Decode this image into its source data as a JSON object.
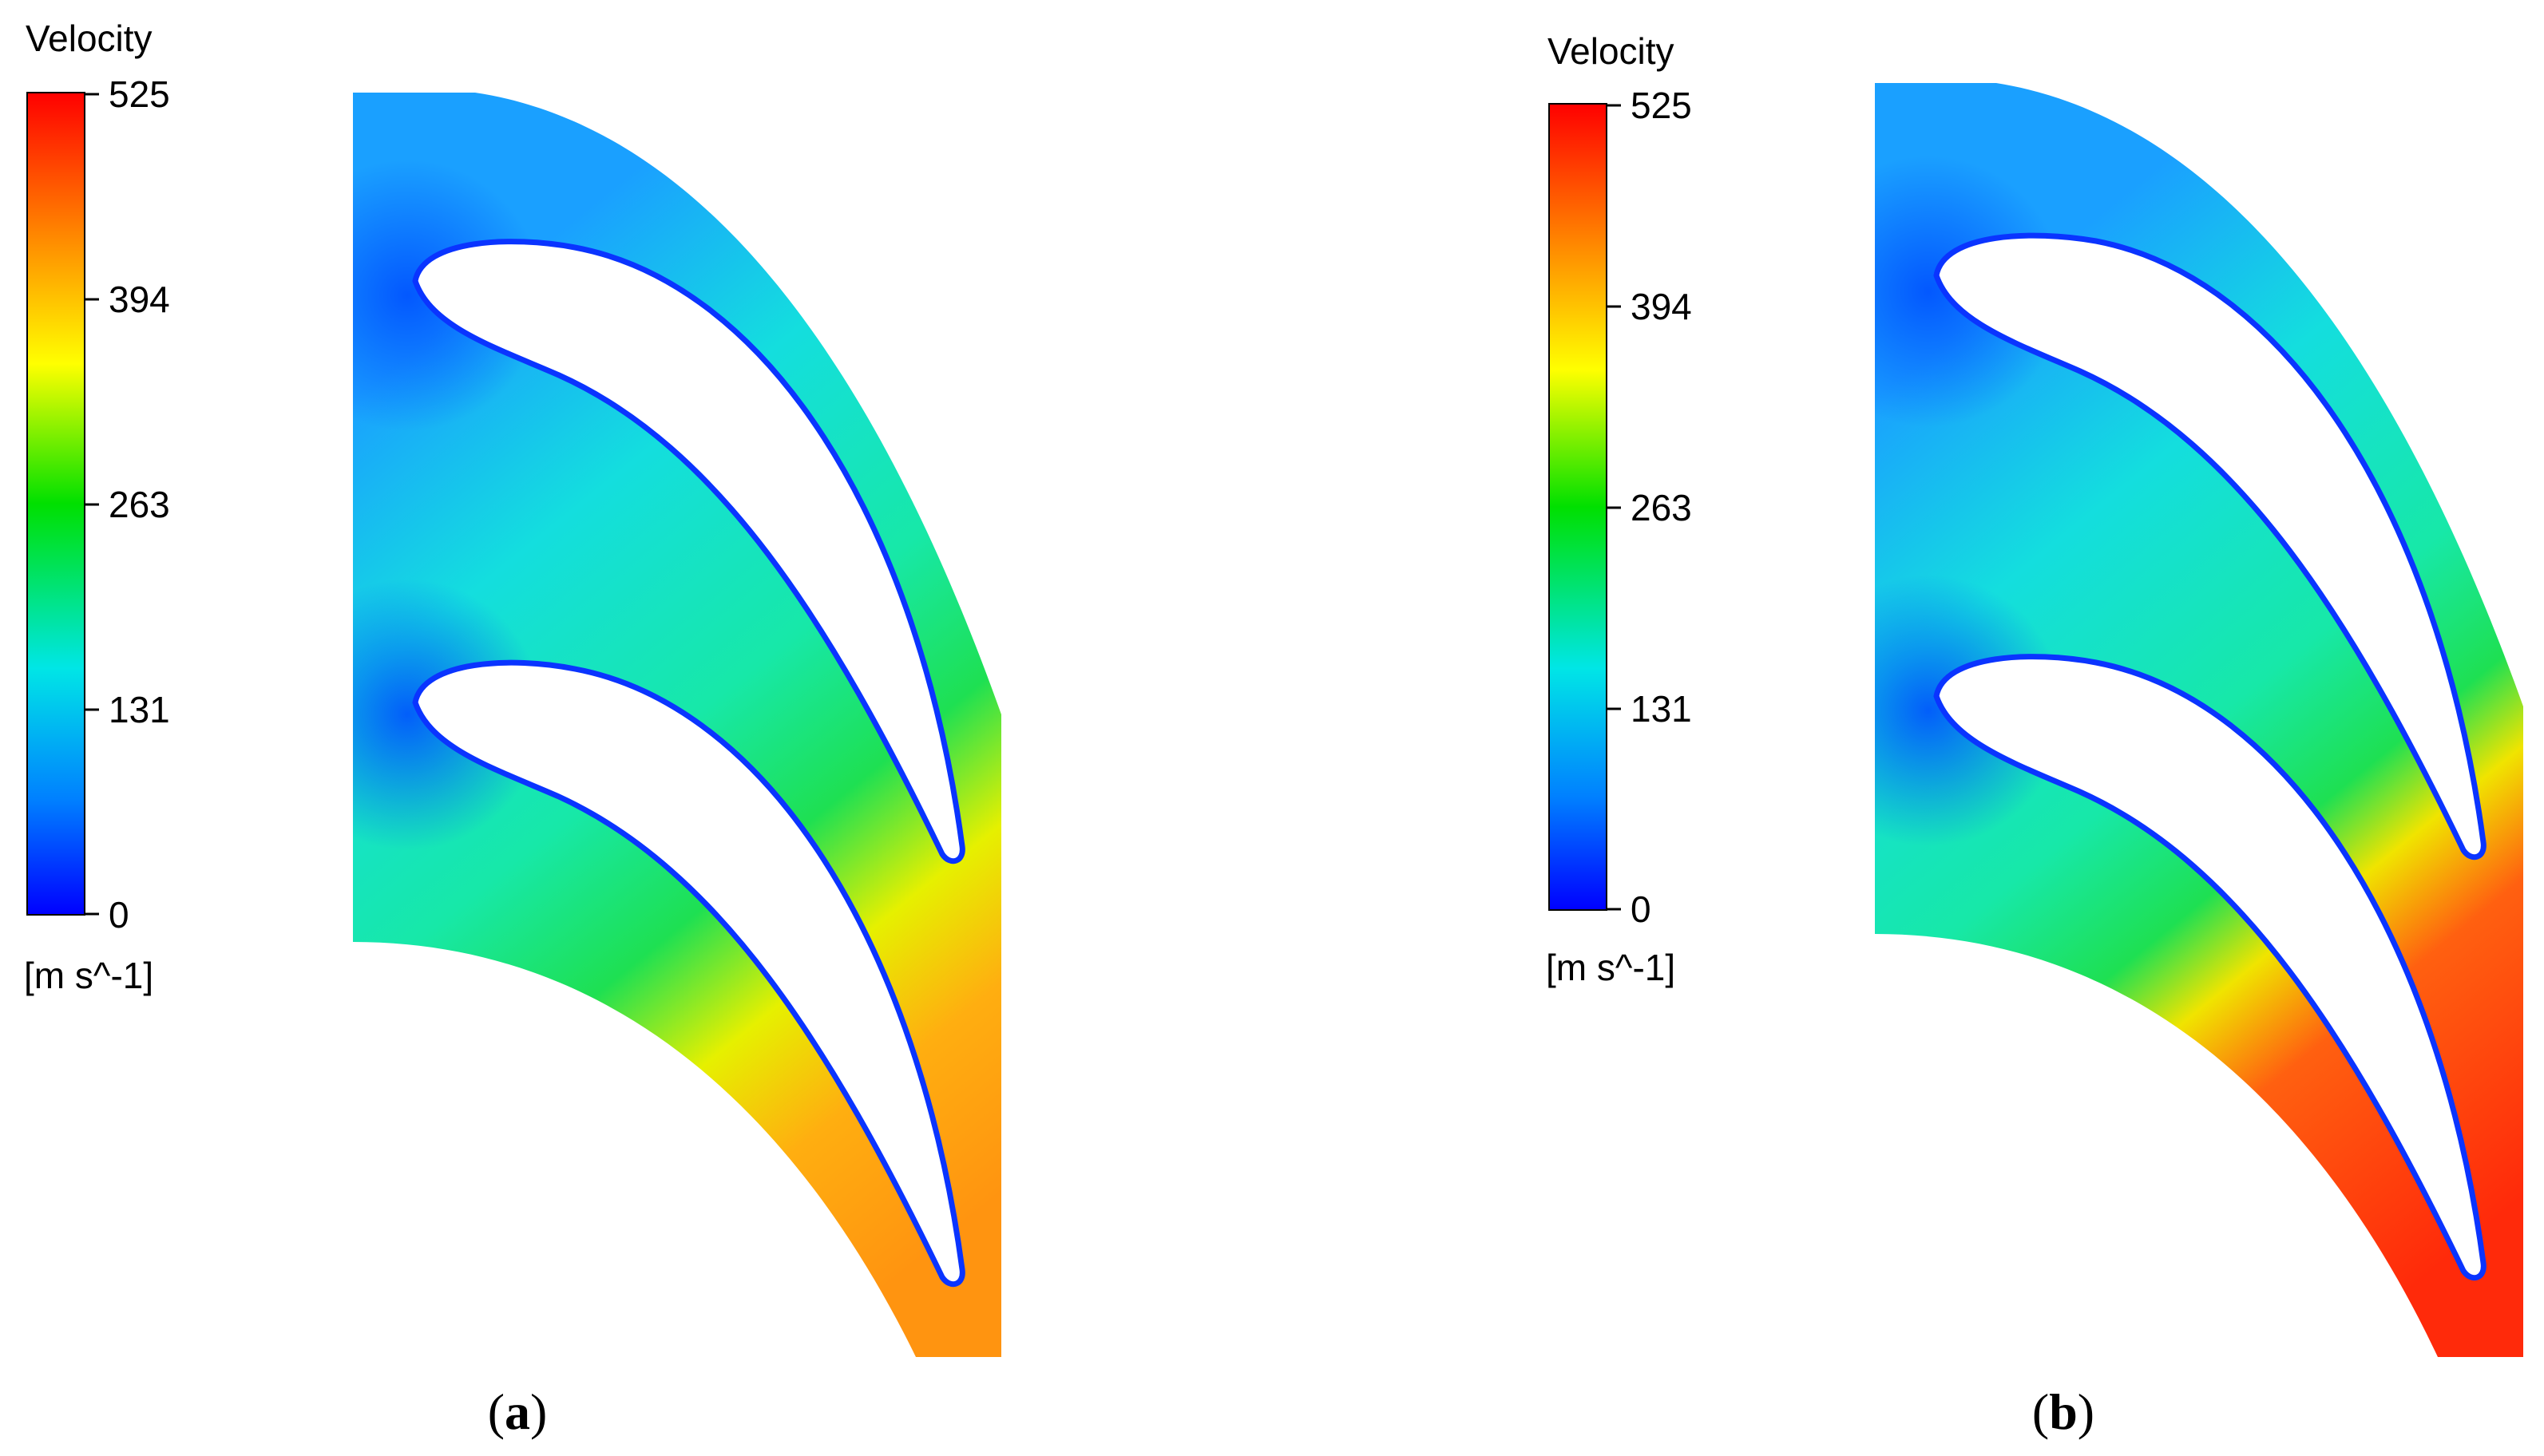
{
  "panels": [
    {
      "id": "a",
      "caption_letter": "a",
      "legend": {
        "title": "Velocity",
        "ticks": [
          "525",
          "394",
          "263",
          "131",
          "0"
        ],
        "unit": "[m s^-1]",
        "colors": [
          "#ff0000",
          "#ff8c00",
          "#ffff00",
          "#00e000",
          "#00e6e6",
          "#0080ff",
          "#0000ff"
        ]
      }
    },
    {
      "id": "b",
      "caption_letter": "b",
      "legend": {
        "title": "Velocity",
        "ticks": [
          "525",
          "394",
          "263",
          "131",
          "0"
        ],
        "unit": "[m s^-1]",
        "colors": [
          "#ff0000",
          "#ff8c00",
          "#ffff00",
          "#00e000",
          "#00e6e6",
          "#0080ff",
          "#0000ff"
        ]
      }
    }
  ]
}
